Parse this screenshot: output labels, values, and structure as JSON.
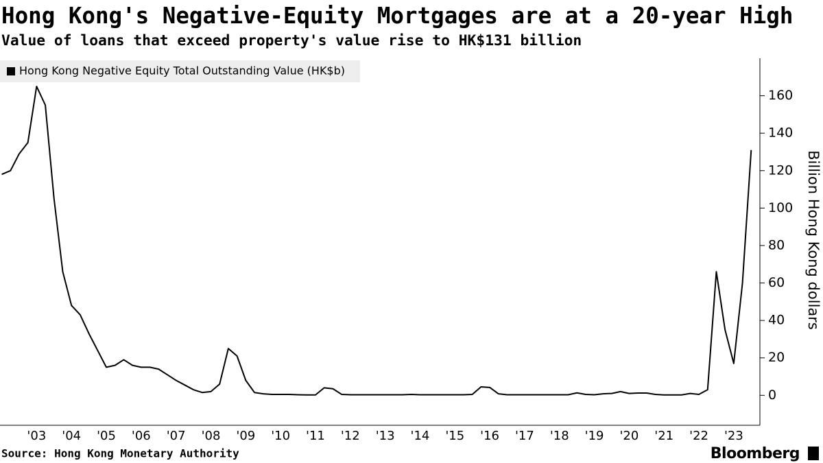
{
  "chart_data": {
    "type": "line",
    "title": "Hong Kong's Negative-Equity Mortgages are at a 20-year High",
    "subtitle": "Value of loans that exceed property's value rise to HK$131 billion",
    "y_label": "Billion Hong Kong dollars",
    "source": "Source: Hong Kong Monetary Authority",
    "branding": "Bloomberg",
    "legend": "top-left",
    "x": [
      2002.5,
      2002.75,
      2003,
      2003.25,
      2003.5,
      2003.75,
      2004,
      2004.25,
      2004.5,
      2004.75,
      2005,
      2005.25,
      2005.5,
      2005.75,
      2006,
      2006.25,
      2006.5,
      2006.75,
      2007,
      2007.25,
      2007.5,
      2007.75,
      2008,
      2008.25,
      2008.5,
      2008.75,
      2009,
      2009.25,
      2009.5,
      2009.75,
      2010,
      2010.25,
      2010.5,
      2010.75,
      2011,
      2011.25,
      2011.5,
      2011.75,
      2012,
      2012.25,
      2012.5,
      2012.75,
      2013,
      2013.25,
      2013.5,
      2013.75,
      2014,
      2014.25,
      2014.5,
      2014.75,
      2015,
      2015.25,
      2015.5,
      2015.75,
      2016,
      2016.25,
      2016.5,
      2016.75,
      2017,
      2017.25,
      2017.5,
      2017.75,
      2018,
      2018.25,
      2018.5,
      2018.75,
      2019,
      2019.25,
      2019.5,
      2019.75,
      2020,
      2020.25,
      2020.5,
      2020.75,
      2021,
      2021.25,
      2021.5,
      2021.75,
      2022,
      2022.25,
      2022.5,
      2022.75,
      2023,
      2023.25,
      2023.5,
      2023.75,
      2024
    ],
    "series": [
      {
        "name": "Hong Kong Negative Equity Total Outstanding Value (HK$b)",
        "color": "#000000",
        "values": [
          118,
          120,
          129,
          135,
          165,
          155,
          105,
          66,
          48,
          43,
          33,
          24,
          15,
          16,
          19,
          16,
          15,
          15,
          14,
          11,
          8,
          5.5,
          3,
          1.5,
          2,
          6,
          25,
          21,
          8,
          1.5,
          0.8,
          0.5,
          0.5,
          0.5,
          0.3,
          0.2,
          0.2,
          4,
          3.5,
          0.5,
          0.3,
          0.3,
          0.3,
          0.3,
          0.3,
          0.3,
          0.3,
          0.5,
          0.3,
          0.3,
          0.3,
          0.3,
          0.3,
          0.3,
          0.5,
          4.5,
          4.2,
          0.8,
          0.3,
          0.3,
          0.3,
          0.3,
          0.3,
          0.3,
          0.3,
          0.3,
          1.3,
          0.5,
          0.3,
          0.8,
          1,
          2,
          1,
          1.2,
          1.2,
          0.5,
          0.2,
          0.2,
          0.2,
          1,
          0.5,
          3,
          66,
          35,
          17,
          60,
          131
        ]
      }
    ],
    "xlim": [
      2002.45,
      2024.25
    ],
    "xticks": [
      {
        "value": 2003.5,
        "label": "'03"
      },
      {
        "value": 2004.5,
        "label": "'04"
      },
      {
        "value": 2005.5,
        "label": "'05"
      },
      {
        "value": 2006.5,
        "label": "'06"
      },
      {
        "value": 2007.5,
        "label": "'07"
      },
      {
        "value": 2008.5,
        "label": "'08"
      },
      {
        "value": 2009.5,
        "label": "'09"
      },
      {
        "value": 2010.5,
        "label": "'10"
      },
      {
        "value": 2011.5,
        "label": "'11"
      },
      {
        "value": 2012.5,
        "label": "'12"
      },
      {
        "value": 2013.5,
        "label": "'13"
      },
      {
        "value": 2014.5,
        "label": "'14"
      },
      {
        "value": 2015.5,
        "label": "'15"
      },
      {
        "value": 2016.5,
        "label": "'16"
      },
      {
        "value": 2017.5,
        "label": "'17"
      },
      {
        "value": 2018.5,
        "label": "'18"
      },
      {
        "value": 2019.5,
        "label": "'19"
      },
      {
        "value": 2020.5,
        "label": "'20"
      },
      {
        "value": 2021.5,
        "label": "'21"
      },
      {
        "value": 2022.5,
        "label": "'22"
      },
      {
        "value": 2023.5,
        "label": "'23"
      }
    ],
    "ylim": [
      -16,
      180
    ],
    "yticks": [
      0,
      20,
      40,
      60,
      80,
      100,
      120,
      140,
      160
    ],
    "grid": false
  }
}
